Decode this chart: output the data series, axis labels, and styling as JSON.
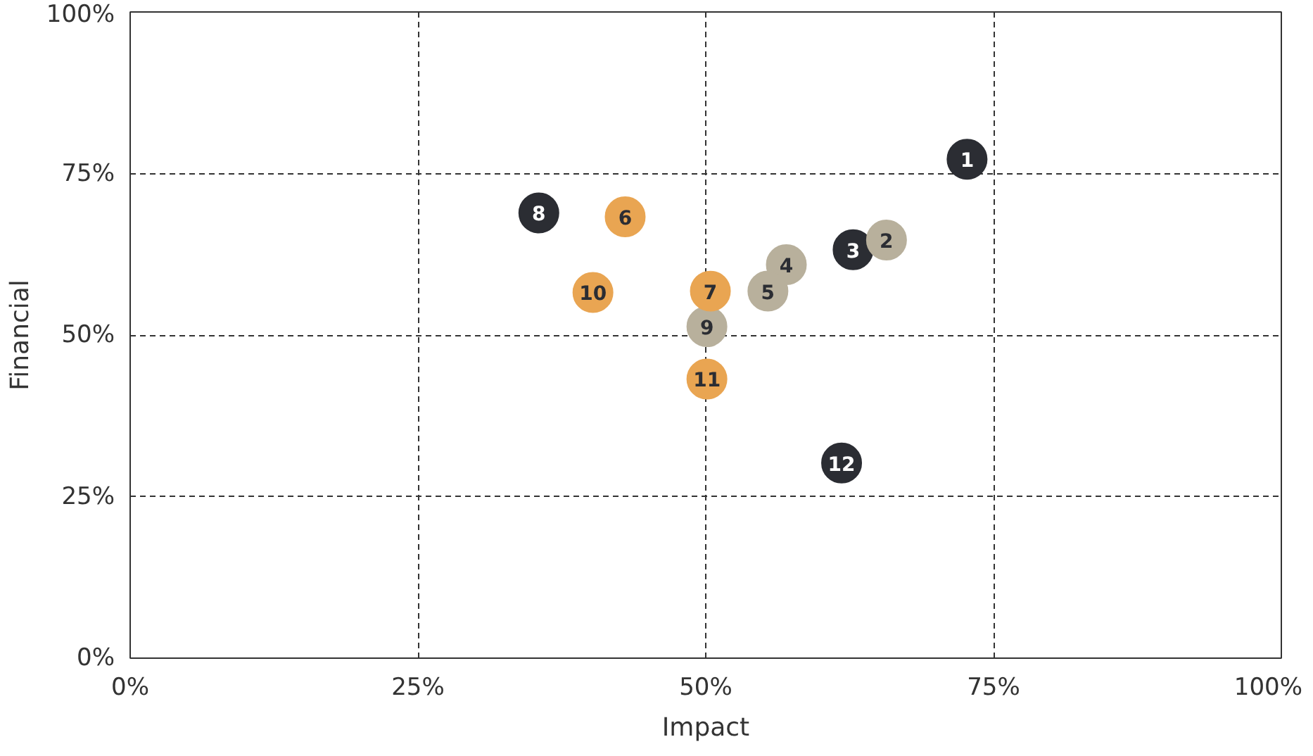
{
  "chart_data": {
    "type": "scatter",
    "xlabel": "Impact",
    "ylabel": "Financial",
    "marker": "circle",
    "grid": true,
    "xlim": [
      0,
      100
    ],
    "ylim": [
      0,
      100
    ],
    "xticks": [
      {
        "value": 0,
        "label": "0%"
      },
      {
        "value": 25,
        "label": "25%"
      },
      {
        "value": 50,
        "label": "50%"
      },
      {
        "value": 75,
        "label": "75%"
      },
      {
        "value": 100,
        "label": "100%"
      }
    ],
    "yticks": [
      {
        "value": 0,
        "label": "0%"
      },
      {
        "value": 25,
        "label": "25%"
      },
      {
        "value": 50,
        "label": "50%"
      },
      {
        "value": 75,
        "label": "75%"
      },
      {
        "value": 100,
        "label": "100%"
      }
    ],
    "series": [
      {
        "color": "#2b2d33",
        "x": [
          72.7,
          62.8,
          35.5,
          61.8
        ],
        "values": [
          77.2,
          63.2,
          68.9,
          30.2
        ]
      },
      {
        "color": "#b8b09c",
        "x": [
          65.7,
          57.0,
          55.4,
          50.1
        ],
        "values": [
          64.7,
          60.9,
          56.8,
          51.3
        ]
      },
      {
        "color": "#e9a552",
        "x": [
          43.0,
          50.4,
          40.2,
          50.1
        ],
        "values": [
          68.3,
          56.8,
          56.6,
          43.2
        ]
      }
    ],
    "annotations": [
      {
        "text": "1",
        "x": 72.7,
        "y": 77.2
      },
      {
        "text": "2",
        "x": 65.7,
        "y": 64.7
      },
      {
        "text": "3",
        "x": 62.8,
        "y": 63.2
      },
      {
        "text": "4",
        "x": 57.0,
        "y": 60.9
      },
      {
        "text": "5",
        "x": 55.4,
        "y": 56.8
      },
      {
        "text": "6",
        "x": 43.0,
        "y": 68.3
      },
      {
        "text": "7",
        "x": 50.4,
        "y": 56.8
      },
      {
        "text": "8",
        "x": 35.5,
        "y": 68.9
      },
      {
        "text": "9",
        "x": 50.1,
        "y": 51.3
      },
      {
        "text": "10",
        "x": 40.2,
        "y": 56.6
      },
      {
        "text": "11",
        "x": 50.1,
        "y": 43.2
      },
      {
        "text": "12",
        "x": 61.8,
        "y": 30.2
      }
    ]
  }
}
